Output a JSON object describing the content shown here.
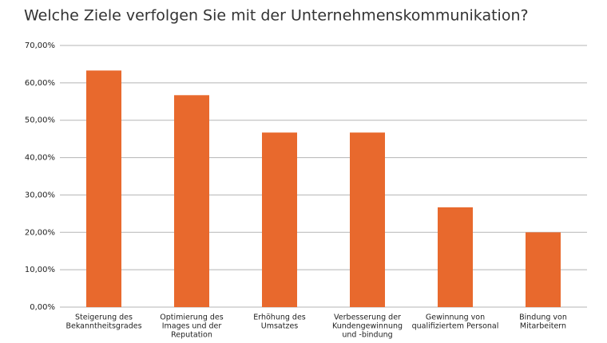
{
  "chart_data": {
    "type": "bar",
    "title": "Welche Ziele verfolgen Sie mit der Unternehmenskommunikation?",
    "categories": [
      [
        "Steigerung des",
        "Bekanntheitsgrades"
      ],
      [
        "Optimierung des",
        "Images und der",
        "Reputation"
      ],
      [
        "Erhöhung des",
        "Umsatzes"
      ],
      [
        "Verbesserung der",
        "Kundengewinnung",
        "und -bindung"
      ],
      [
        "Gewinnung von",
        "qualifiziertem Personal"
      ],
      [
        "Bindung von",
        "Mitarbeitern"
      ]
    ],
    "values": [
      63.3,
      56.7,
      46.7,
      46.7,
      26.7,
      20.0
    ],
    "color": "#e8692d",
    "ylim": [
      0,
      70
    ],
    "yticks": [
      {
        "value": 0,
        "label": "0,00%"
      },
      {
        "value": 10,
        "label": "10,00%"
      },
      {
        "value": 20,
        "label": "20,00%"
      },
      {
        "value": 30,
        "label": "30,00%"
      },
      {
        "value": 40,
        "label": "40,00%"
      },
      {
        "value": 50,
        "label": "50,00%"
      },
      {
        "value": 60,
        "label": "60,00%"
      },
      {
        "value": 70,
        "label": "70,00%"
      }
    ],
    "grid": true
  }
}
